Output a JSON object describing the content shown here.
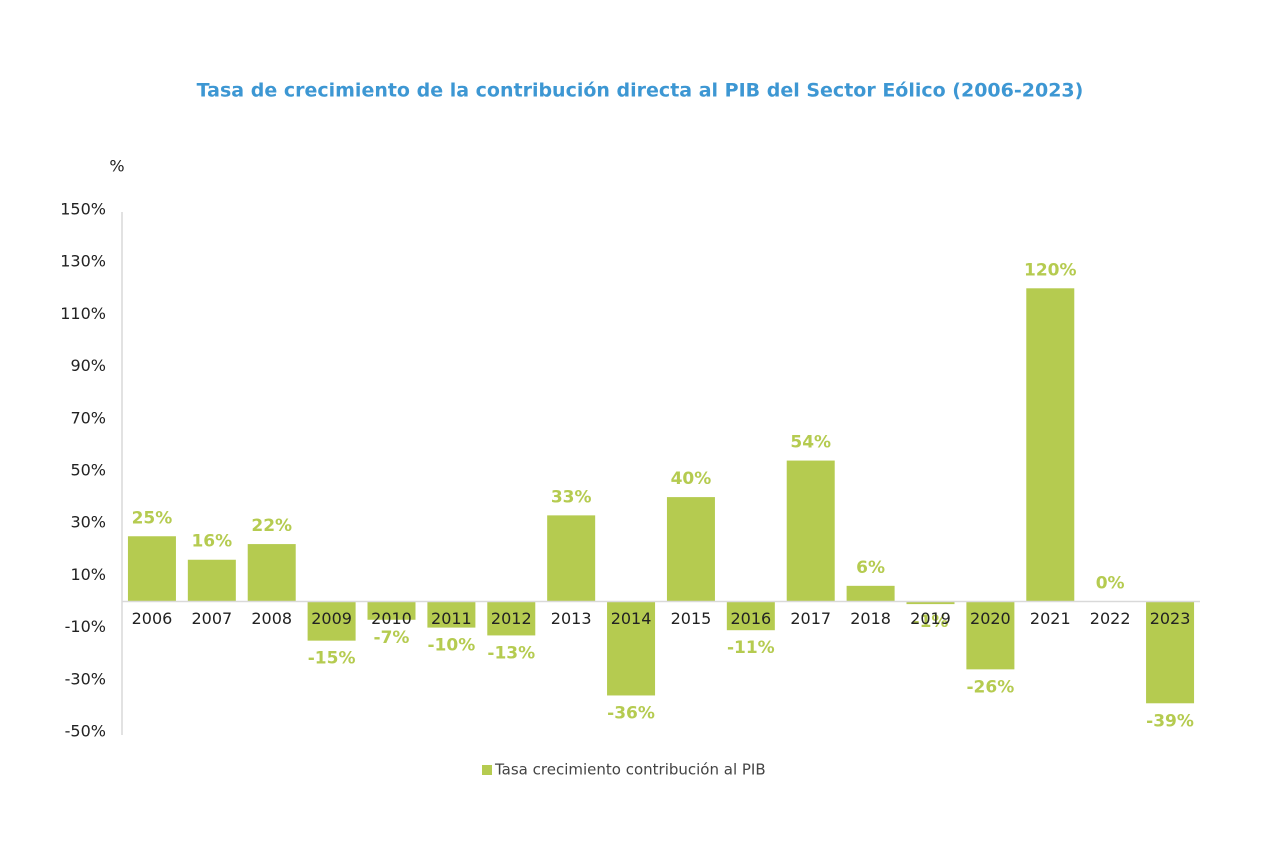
{
  "chart_data": {
    "type": "bar",
    "title": "Tasa de crecimiento de la contribución directa al PIB del Sector Eólico (2006-2023)",
    "ylabel": "%",
    "categories": [
      "2006",
      "2007",
      "2008",
      "2009",
      "2010",
      "2011",
      "2012",
      "2013",
      "2014",
      "2015",
      "2016",
      "2017",
      "2018",
      "2019",
      "2020",
      "2021",
      "2022",
      "2023"
    ],
    "series": [
      {
        "name": "Tasa crecimiento contribución al PIB",
        "color": "#b5cb50",
        "values": [
          25,
          16,
          22,
          -15,
          -7,
          -10,
          -13,
          33,
          -36,
          40,
          -11,
          54,
          6,
          -1,
          -26,
          120,
          0,
          -39
        ],
        "value_labels": [
          "25%",
          "16%",
          "22%",
          "-15%",
          "-7%",
          "-10%",
          "-13%",
          "33%",
          "-36%",
          "40%",
          "-11%",
          "54%",
          "6%",
          "-1%",
          "-26%",
          "120%",
          "0%",
          "-39%"
        ]
      }
    ],
    "ylim": [
      -50,
      150
    ],
    "yticks": [
      {
        "value": 150,
        "label": "150%"
      },
      {
        "value": 130,
        "label": "130%"
      },
      {
        "value": 110,
        "label": "110%"
      },
      {
        "value": 90,
        "label": "90%"
      },
      {
        "value": 70,
        "label": "70%"
      },
      {
        "value": 50,
        "label": "50%"
      },
      {
        "value": 30,
        "label": "30%"
      },
      {
        "value": 10,
        "label": "10%"
      },
      {
        "value": -10,
        "label": "-10%"
      },
      {
        "value": -30,
        "label": "-30%"
      },
      {
        "value": -50,
        "label": "-50%"
      }
    ],
    "grid": false
  }
}
